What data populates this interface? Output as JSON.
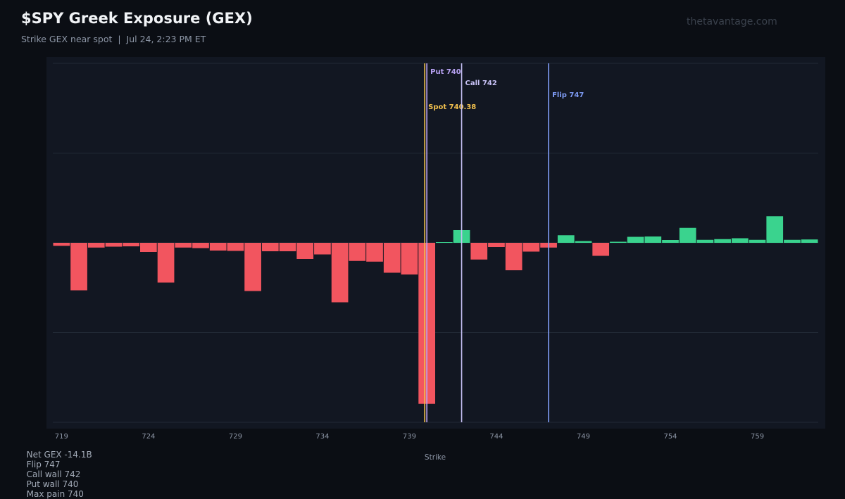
{
  "header": {
    "title": "$SPY Greek Exposure (GEX)",
    "subtitle": "Strike GEX near spot  |  Jul 24, 2:23 PM ET",
    "watermark": "thetavantage.com"
  },
  "footer": {
    "net_gex": "Net GEX -14.1B",
    "flip": "Flip 747",
    "call_wall": "Call wall 742",
    "put_wall": "Put wall 740",
    "max_pain": "Max pain 740"
  },
  "colors": {
    "negative": "#f2555f",
    "positive": "#3ad38e",
    "spot": "#f2c14e",
    "put_wall": "#b9a3f5",
    "call_wall": "#c7c1f5",
    "flip": "#7f9cf5",
    "grid": "#222a36",
    "tick": "#8d96a6"
  },
  "chart_data": {
    "type": "bar",
    "title": "$SPY Greek Exposure (GEX)",
    "xlabel": "Strike",
    "ylabel": "",
    "categories": [
      719,
      720,
      721,
      722,
      723,
      724,
      725,
      726,
      727,
      728,
      729,
      730,
      731,
      732,
      733,
      734,
      735,
      736,
      737,
      738,
      739,
      740,
      741,
      742,
      743,
      744,
      745,
      746,
      747,
      748,
      749,
      750,
      751,
      752,
      753,
      754,
      755,
      756,
      757,
      758,
      759,
      760,
      761,
      762
    ],
    "values": [
      -0.17,
      -2.7,
      -0.27,
      -0.22,
      -0.2,
      -0.52,
      -2.26,
      -0.27,
      -0.3,
      -0.44,
      -0.46,
      -2.74,
      -0.48,
      -0.48,
      -0.92,
      -0.66,
      -3.38,
      -1.03,
      -1.07,
      -1.7,
      -1.8,
      -9.15,
      0.04,
      0.72,
      -0.95,
      -0.24,
      -1.56,
      -0.5,
      -0.27,
      0.43,
      0.1,
      -0.74,
      0.06,
      0.34,
      0.36,
      0.16,
      0.85,
      0.17,
      0.21,
      0.26,
      0.17,
      1.51,
      0.17,
      0.19
    ],
    "ylim": [
      -10.2,
      10.2
    ],
    "x_ticks": [
      719,
      724,
      729,
      734,
      739,
      744,
      749,
      754,
      759
    ],
    "grid": true,
    "markers": [
      {
        "name": "Spot 740.38",
        "x": 740.38,
        "role": "spot"
      },
      {
        "name": "Put 740",
        "x": 740.5,
        "role": "put_wall"
      },
      {
        "name": "Call 742",
        "x": 742.5,
        "role": "call_wall"
      },
      {
        "name": "Flip 747",
        "x": 747.5,
        "role": "flip"
      }
    ]
  }
}
